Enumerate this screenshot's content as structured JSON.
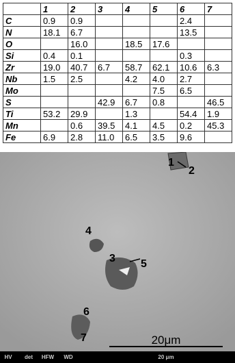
{
  "table": {
    "header": [
      "1",
      "2",
      "3",
      "4",
      "5",
      "6",
      "7"
    ],
    "rows": [
      {
        "element": "C",
        "values": [
          "0.9",
          "0.9",
          null,
          null,
          null,
          "2.4",
          null
        ]
      },
      {
        "element": "N",
        "values": [
          "18.1",
          "6.7",
          null,
          null,
          null,
          "13.5",
          null
        ]
      },
      {
        "element": "O",
        "values": [
          null,
          "16.0",
          null,
          "18.5",
          "17.6",
          null,
          null
        ]
      },
      {
        "element": "Si",
        "values": [
          "0.4",
          "0.1",
          null,
          null,
          null,
          "0.3",
          null
        ]
      },
      {
        "element": "Zr",
        "values": [
          "19.0",
          "40.7",
          "6.7",
          "58.7",
          "62.1",
          "10.6",
          "6.3"
        ]
      },
      {
        "element": "Nb",
        "values": [
          "1.5",
          "2.5",
          null,
          "4.2",
          "4.0",
          "2.7",
          null
        ]
      },
      {
        "element": "Mo",
        "values": [
          null,
          null,
          null,
          null,
          "7.5",
          "6.5",
          null
        ]
      },
      {
        "element": "S",
        "values": [
          null,
          null,
          "42.9",
          "6.7",
          "0.8",
          null,
          "46.5"
        ]
      },
      {
        "element": "Ti",
        "values": [
          "53.2",
          "29.9",
          null,
          "1.3",
          null,
          "54.4",
          "1.9"
        ]
      },
      {
        "element": "Mn",
        "values": [
          null,
          "0.6",
          "39.5",
          "4.1",
          "4.5",
          "0.2",
          "45.3"
        ]
      },
      {
        "element": "Fe",
        "values": [
          "6.9",
          "2.8",
          "11.0",
          "6.5",
          "3.5",
          "9.6",
          null
        ]
      }
    ]
  },
  "image": {
    "labels": [
      "1",
      "2",
      "3",
      "4",
      "5",
      "6",
      "7"
    ],
    "scale_bar": "20μm",
    "info_bar": {
      "fields": [
        "HV",
        "det",
        "HFW",
        "WD"
      ],
      "scale": "20 μm"
    }
  }
}
